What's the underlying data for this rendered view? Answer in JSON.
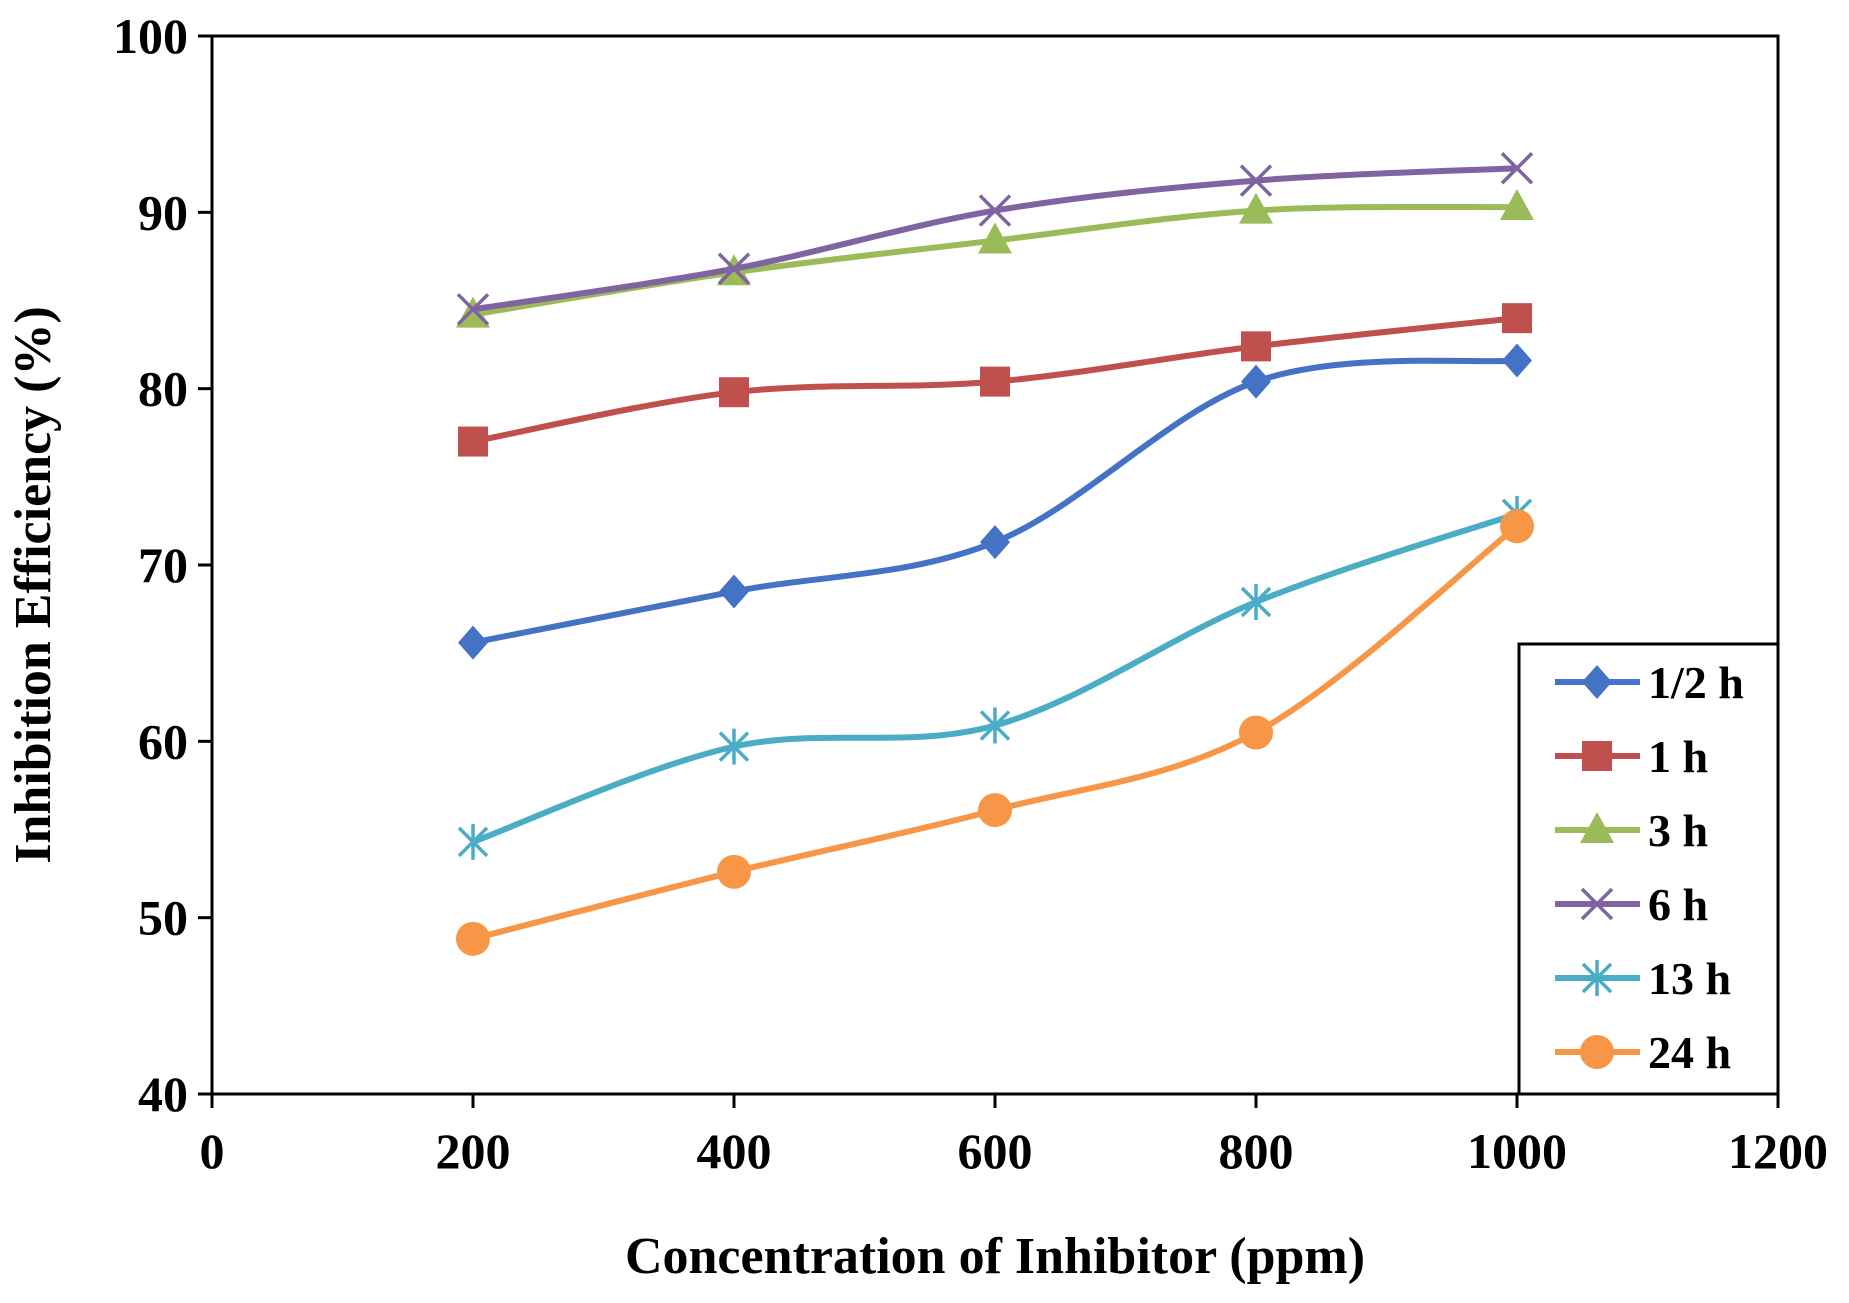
{
  "chart_data": {
    "type": "line",
    "title": "",
    "xlabel": "Concentration of Inhibitor (ppm)",
    "ylabel": "Inhibition Efficiency (%)",
    "xlim": [
      0,
      1200
    ],
    "ylim": [
      40,
      100
    ],
    "xticks": [
      0,
      200,
      400,
      600,
      800,
      1000,
      1200
    ],
    "yticks": [
      40,
      50,
      60,
      70,
      80,
      90,
      100
    ],
    "grid": false,
    "legend_position": "bottom-right",
    "x": [
      200,
      400,
      600,
      800,
      1000
    ],
    "series": [
      {
        "name": "1/2 h",
        "marker": "diamond",
        "color": "#4472C4",
        "values": [
          65.6,
          68.5,
          71.3,
          80.4,
          81.6
        ]
      },
      {
        "name": "1 h",
        "marker": "square",
        "color": "#C0504D",
        "values": [
          77.0,
          79.8,
          80.4,
          82.4,
          84.0
        ]
      },
      {
        "name": "3 h",
        "marker": "triangle",
        "color": "#9BBB59",
        "values": [
          84.2,
          86.6,
          88.4,
          90.1,
          90.3
        ]
      },
      {
        "name": "6 h",
        "marker": "x",
        "color": "#8064A2",
        "values": [
          84.5,
          86.8,
          90.1,
          91.8,
          92.5
        ]
      },
      {
        "name": "13 h",
        "marker": "star",
        "color": "#4BACC6",
        "values": [
          54.3,
          59.7,
          60.9,
          67.9,
          72.9
        ]
      },
      {
        "name": "24 h",
        "marker": "circle",
        "color": "#F79646",
        "values": [
          48.8,
          52.6,
          56.1,
          60.5,
          72.2
        ]
      }
    ]
  }
}
